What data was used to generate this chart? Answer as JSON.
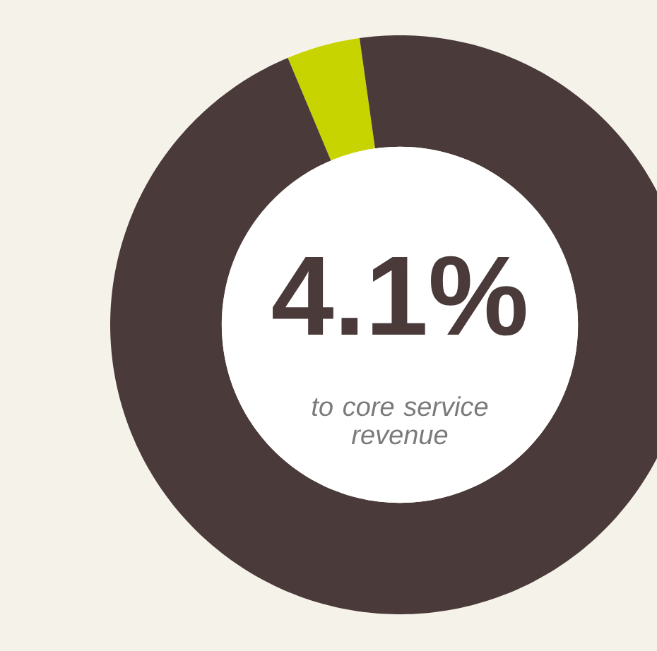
{
  "chart_data": {
    "type": "donut",
    "categories": [
      null,
      null
    ],
    "values": [
      4.1,
      95.9
    ],
    "colors": [
      "#c8d400",
      "#4a3a3a"
    ],
    "annotations": [
      "4.1%",
      "to core service revenue"
    ]
  }
}
